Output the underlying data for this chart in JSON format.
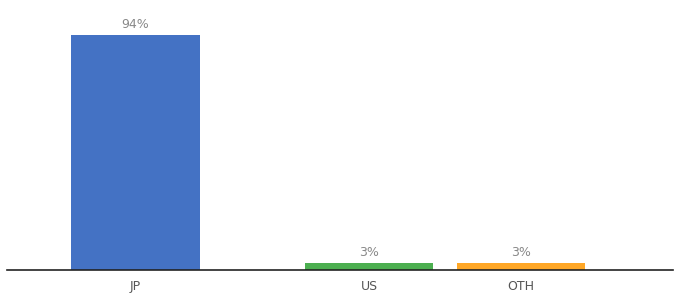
{
  "categories": [
    "JP",
    "US",
    "OTH"
  ],
  "values": [
    94,
    3,
    3
  ],
  "bar_colors": [
    "#4472c4",
    "#4caf50",
    "#ffa726"
  ],
  "value_labels": [
    "94%",
    "3%",
    "3%"
  ],
  "ylim": [
    0,
    105
  ],
  "bar_width": 0.55,
  "x_positions": [
    0,
    1,
    1.6
  ],
  "background_color": "#ffffff",
  "label_fontsize": 9,
  "tick_fontsize": 9
}
